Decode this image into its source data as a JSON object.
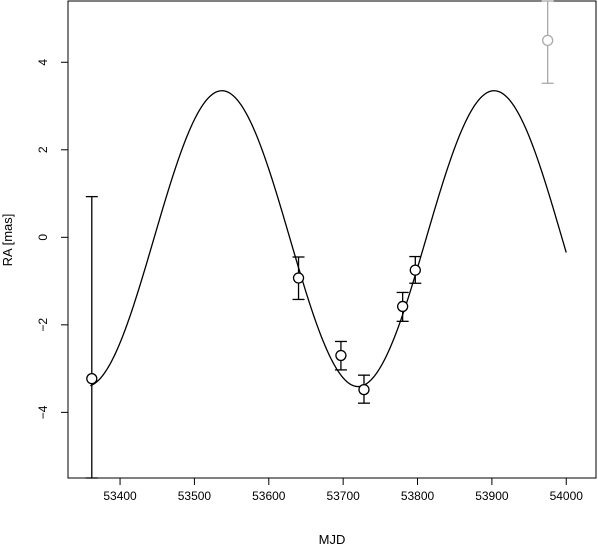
{
  "chart_data": {
    "type": "scatter",
    "title": "",
    "xlabel": "MJD",
    "ylabel": "RA [mas]",
    "xlim": [
      53330,
      54040
    ],
    "ylim": [
      -5.5,
      5.4
    ],
    "x_ticks": [
      53400,
      53500,
      53600,
      53700,
      53800,
      53900,
      54000
    ],
    "y_ticks": [
      -4,
      -2,
      0,
      2,
      4
    ],
    "grid": false,
    "legend": "none",
    "colors": {
      "points": "#000000",
      "outlier": "#aaaaaa",
      "model_curve": "#000000"
    },
    "model_curve": {
      "description_shape": "sinusoid",
      "amplitude": 3.38,
      "offset": -0.03,
      "period": 366,
      "peak_x": 53537,
      "x_range": [
        53360,
        54000
      ]
    },
    "series": [
      {
        "style": "points",
        "color": "#000000",
        "points": [
          {
            "x": 53362,
            "y": -3.23,
            "err_low": -5.5,
            "err_high": 0.93
          },
          {
            "x": 53640,
            "y": -0.93,
            "err_low": -1.42,
            "err_high": -0.45
          },
          {
            "x": 53697,
            "y": -2.7,
            "err_low": -3.03,
            "err_high": -2.38
          },
          {
            "x": 53728,
            "y": -3.48,
            "err_low": -3.79,
            "err_high": -3.15
          },
          {
            "x": 53780,
            "y": -1.58,
            "err_low": -1.92,
            "err_high": -1.26
          },
          {
            "x": 53797,
            "y": -0.75,
            "err_low": -1.05,
            "err_high": -0.44
          }
        ]
      },
      {
        "style": "points",
        "color": "#aaaaaa",
        "points": [
          {
            "x": 53975,
            "y": 4.5,
            "err_low": 3.52,
            "err_high": 5.4
          }
        ]
      }
    ]
  }
}
